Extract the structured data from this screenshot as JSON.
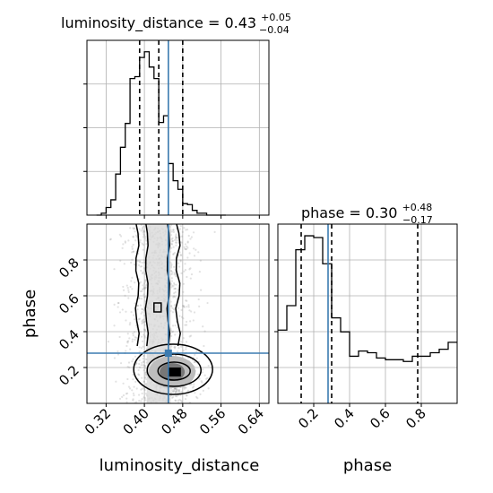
{
  "colors": {
    "truth": "#3b7bb0",
    "hist": "#000000",
    "grid": "#b0b0b0",
    "points": "#8c8c8c",
    "density_dark": "#000000",
    "density_light": "#d9d9d9"
  },
  "chart_data": [
    {
      "type": "step-histogram",
      "panel": "luminosity_distance-marginal",
      "title": {
        "prefix": "luminosity_distance = 0.43",
        "plus": "+0.05",
        "minus": "−0.04"
      },
      "x_range": [
        0.28,
        0.66
      ],
      "bin_edges": [
        0.3,
        0.31,
        0.32,
        0.33,
        0.34,
        0.35,
        0.36,
        0.37,
        0.38,
        0.39,
        0.4,
        0.41,
        0.42,
        0.43,
        0.44,
        0.45,
        0.46,
        0.47,
        0.48,
        0.49,
        0.5,
        0.51,
        0.52,
        0.53,
        0.54,
        0.55,
        0.56,
        0.57
      ],
      "counts": [
        0,
        2,
        8,
        16,
        43,
        71,
        96,
        143,
        145,
        165,
        171,
        155,
        143,
        97,
        104,
        54,
        36,
        27,
        12,
        11,
        5,
        2,
        2,
        0,
        0,
        0,
        0
      ],
      "quantiles": [
        0.39,
        0.43,
        0.48
      ],
      "truth": 0.45,
      "grid": true
    },
    {
      "type": "scatter-density",
      "panel": "2d",
      "x_label": "luminosity_distance",
      "y_label": "phase",
      "x_range": [
        0.28,
        0.66
      ],
      "y_range": [
        0.0,
        1.0
      ],
      "x_ticks": [
        "0.32",
        "0.40",
        "0.48",
        "0.56",
        "0.64"
      ],
      "y_ticks": [
        "0.2",
        "0.4",
        "0.6",
        "0.8"
      ],
      "truth": [
        0.45,
        0.28
      ],
      "grid": true
    },
    {
      "type": "step-histogram",
      "panel": "phase-marginal",
      "title": {
        "prefix": "phase = 0.30",
        "plus": "+0.48",
        "minus": "−0.17"
      },
      "x_range": [
        0.0,
        1.0
      ],
      "x_label": "phase",
      "x_ticks": [
        "0.2",
        "0.4",
        "0.6",
        "0.8"
      ],
      "bin_edges": [
        0.0,
        0.05,
        0.1,
        0.15,
        0.2,
        0.25,
        0.3,
        0.35,
        0.4,
        0.45,
        0.5,
        0.55,
        0.6,
        0.65,
        0.7,
        0.75,
        0.8,
        0.85,
        0.9,
        0.95,
        1.0
      ],
      "counts": [
        42,
        56,
        88,
        96,
        95,
        80,
        49,
        41,
        27,
        30,
        29,
        26,
        25,
        25,
        24,
        27,
        27,
        29,
        31,
        35
      ],
      "quantiles": [
        0.13,
        0.3,
        0.78
      ],
      "truth": 0.28,
      "grid": true
    }
  ]
}
